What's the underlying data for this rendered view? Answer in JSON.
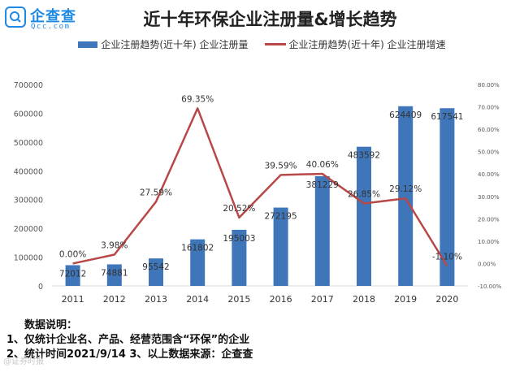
{
  "brand": {
    "name": "企查查",
    "sub": "Qcc.com"
  },
  "header": {
    "title": "近十年环保企业注册量&增长趋势"
  },
  "legend": {
    "bar_label": "企业注册趋势(近十年) 企业注册量",
    "line_label": "企业注册趋势(近十年) 企业注册增速"
  },
  "colors": {
    "bar": "#3f75b9",
    "line": "#b84848",
    "brand": "#1e88e5"
  },
  "chart_data": {
    "type": "bar",
    "categories": [
      "2011",
      "2012",
      "2013",
      "2014",
      "2015",
      "2016",
      "2017",
      "2018",
      "2019",
      "2020"
    ],
    "series": [
      {
        "name": "企业注册趋势(近十年) 企业注册量",
        "type": "bar",
        "axis": "left",
        "values": [
          72012,
          74881,
          95542,
          161802,
          195003,
          272195,
          381229,
          483592,
          624409,
          617541
        ],
        "labels": [
          "72012",
          "74881",
          "95542",
          "161802",
          "195003",
          "272195",
          "381229",
          "483592",
          "624409",
          "617541"
        ]
      },
      {
        "name": "企业注册趋势(近十年) 企业注册增速",
        "type": "line",
        "axis": "right",
        "values": [
          0.0,
          3.98,
          27.59,
          69.35,
          20.52,
          39.59,
          40.06,
          26.85,
          29.12,
          -1.1
        ],
        "labels": [
          "0.00%",
          "3.98%",
          "27.59%",
          "69.35%",
          "20.52%",
          "39.59%",
          "40.06%",
          "26.85%",
          "29.12%",
          "-1.10%"
        ]
      }
    ],
    "y_left": {
      "ylim": [
        0,
        700000
      ],
      "ticks": [
        "0",
        "100000",
        "200000",
        "300000",
        "400000",
        "500000",
        "600000",
        "700000"
      ]
    },
    "y_right": {
      "ylim": [
        -10,
        80
      ],
      "ticks": [
        "-10.00%",
        "0.00%",
        "10.00%",
        "20.00%",
        "30.00%",
        "40.00%",
        "50.00%",
        "60.00%",
        "70.00%",
        "80.00%"
      ]
    },
    "grid": false,
    "legend_position": "top"
  },
  "notes": {
    "heading": "数据说明：",
    "line1": "1、仅统计企业名、产品、经营范围含“环保”的企业",
    "line2": "2、统计时间2021/9/14    3、以上数据来源：企查查"
  },
  "watermark": "@证券时报"
}
